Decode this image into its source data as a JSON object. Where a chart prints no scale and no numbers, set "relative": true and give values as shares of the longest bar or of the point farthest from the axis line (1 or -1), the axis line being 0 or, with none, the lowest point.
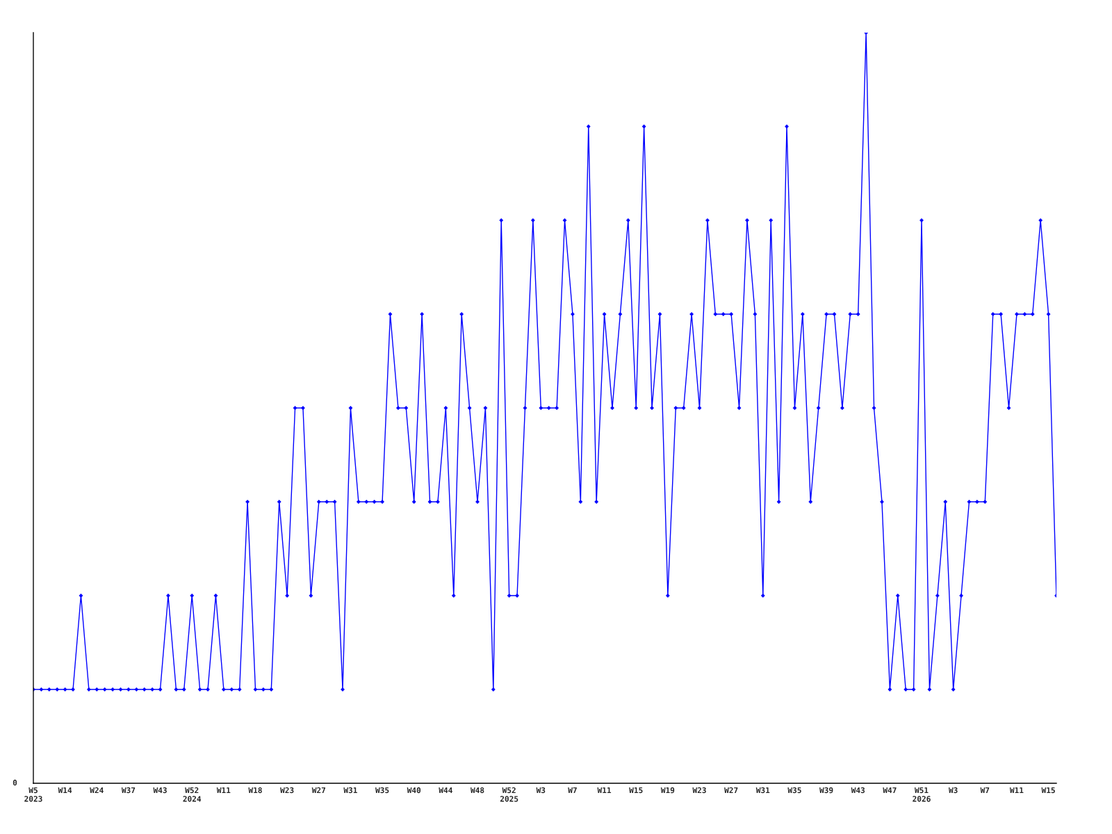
{
  "chart_data": {
    "type": "line",
    "relative": true,
    "marker": "diamond",
    "line_style": "solid",
    "grid": false,
    "categories": [
      "W5\n2023",
      null,
      null,
      null,
      "W14",
      null,
      null,
      null,
      "W24",
      null,
      null,
      null,
      "W37",
      null,
      null,
      null,
      "W43",
      null,
      null,
      null,
      "W52\n2024",
      null,
      null,
      null,
      "W11",
      null,
      null,
      null,
      "W18",
      null,
      null,
      null,
      "W23",
      null,
      null,
      null,
      "W27",
      null,
      null,
      null,
      "W31",
      null,
      null,
      null,
      "W35",
      null,
      null,
      null,
      "W40",
      null,
      null,
      null,
      "W44",
      null,
      null,
      null,
      "W48",
      null,
      null,
      null,
      "W52\n2025",
      null,
      null,
      null,
      "W3",
      null,
      null,
      null,
      "W7",
      null,
      null,
      null,
      "W11",
      null,
      null,
      null,
      "W15",
      null,
      null,
      null,
      "W19",
      null,
      null,
      null,
      "W23",
      null,
      null,
      null,
      "W27",
      null,
      null,
      null,
      "W31",
      null,
      null,
      null,
      "W35",
      null,
      null,
      null,
      "W39",
      null,
      null,
      null,
      "W43",
      null,
      null,
      null,
      "W47",
      null,
      null,
      null,
      "W51\n2026",
      null,
      null,
      null,
      "W3",
      null,
      null,
      null,
      "W7",
      null,
      null,
      null,
      "W11",
      null,
      null,
      null,
      "W15",
      null
    ],
    "series": [
      {
        "color": "#0000ff",
        "values": [
          0.125,
          0.125,
          0.125,
          0.125,
          0.125,
          0.125,
          0.25,
          0.125,
          0.125,
          0.125,
          0.125,
          0.125,
          0.125,
          0.125,
          0.125,
          0.125,
          0.125,
          0.25,
          0.125,
          0.125,
          0.25,
          0.125,
          0.125,
          0.25,
          0.125,
          0.125,
          0.125,
          0.375,
          0.125,
          0.125,
          0.125,
          0.375,
          0.25,
          0.5,
          0.5,
          0.25,
          0.375,
          0.375,
          0.375,
          0.125,
          0.5,
          0.375,
          0.375,
          0.375,
          0.375,
          0.625,
          0.5,
          0.5,
          0.375,
          0.625,
          0.375,
          0.375,
          0.5,
          0.25,
          0.625,
          0.5,
          0.375,
          0.5,
          0.125,
          0.75,
          0.25,
          0.25,
          0.5,
          0.75,
          0.5,
          0.5,
          0.5,
          0.75,
          0.625,
          0.375,
          0.875,
          0.375,
          0.625,
          0.5,
          0.625,
          0.75,
          0.5,
          0.875,
          0.5,
          0.625,
          0.25,
          0.5,
          0.5,
          0.625,
          0.5,
          0.75,
          0.625,
          0.625,
          0.625,
          0.5,
          0.75,
          0.625,
          0.25,
          0.75,
          0.375,
          0.875,
          0.5,
          0.625,
          0.375,
          0.5,
          0.625,
          0.625,
          0.5,
          0.625,
          0.625,
          1,
          0.5,
          0.375,
          0.125,
          0.25,
          0.125,
          0.125,
          0.75,
          0.125,
          0.25,
          0.375,
          0.125,
          0.25,
          0.375,
          0.375,
          0.375,
          0.625,
          0.625,
          0.5,
          0.625,
          0.625,
          0.625,
          0.75,
          0.625,
          0.25
        ]
      }
    ],
    "annotations": [
      "0"
    ]
  }
}
